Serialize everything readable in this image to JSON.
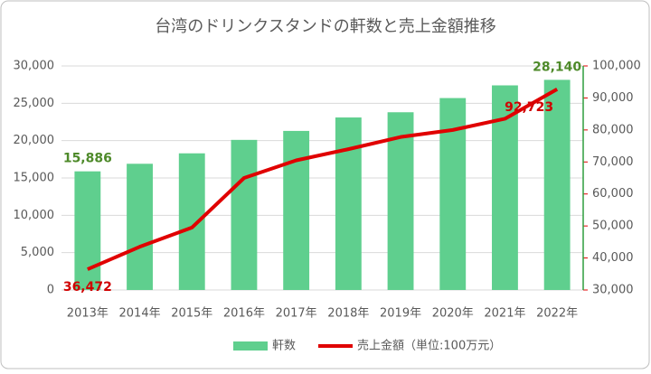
{
  "chart_data": {
    "type": "bar",
    "title": "台湾のドリンクスタンドの軒数と売上金額推移",
    "categories": [
      "2013年",
      "2014年",
      "2015年",
      "2016年",
      "2017年",
      "2018年",
      "2019年",
      "2020年",
      "2021年",
      "2022年"
    ],
    "series": [
      {
        "name": "軒数",
        "color": "#5fcf8e",
        "label_color": "#4e8a2a",
        "values": [
          15886,
          16900,
          18300,
          20100,
          21300,
          23100,
          23800,
          25700,
          27400,
          28140
        ],
        "value_labels": [
          "15,886",
          null,
          null,
          null,
          null,
          null,
          null,
          null,
          null,
          "28,140"
        ]
      },
      {
        "name": "売上金額（単位:100万元）",
        "type": "line",
        "axis": "y2",
        "color": "#e00000",
        "label_color": "#d00000",
        "values": [
          36472,
          43500,
          49500,
          65000,
          70500,
          74000,
          77800,
          80000,
          83500,
          92723
        ],
        "value_labels": [
          "36,472",
          null,
          null,
          null,
          null,
          null,
          null,
          null,
          null,
          "92,723"
        ]
      }
    ],
    "ylim": [
      0,
      30000
    ],
    "yticks": [
      0,
      {
        "value": 5000,
        "label": "5,000"
      },
      {
        "value": 10000,
        "label": "10,000"
      },
      {
        "value": 15000,
        "label": "15,000"
      },
      {
        "value": 20000,
        "label": "20,000"
      },
      {
        "value": 25000,
        "label": "25,000"
      },
      {
        "value": 30000,
        "label": "30,000"
      }
    ],
    "y2lim": [
      30000,
      100000
    ],
    "y2ticks": [
      {
        "value": 30000,
        "label": "30,000"
      },
      {
        "value": 40000,
        "label": "40,000"
      },
      {
        "value": 50000,
        "label": "50,000"
      },
      {
        "value": 60000,
        "label": "60,000"
      },
      {
        "value": 70000,
        "label": "70,000"
      },
      {
        "value": 80000,
        "label": "80,000"
      },
      {
        "value": 90000,
        "label": "90,000"
      },
      {
        "value": 100000,
        "label": "100,000"
      }
    ],
    "grid": true,
    "legend": "bottom"
  }
}
